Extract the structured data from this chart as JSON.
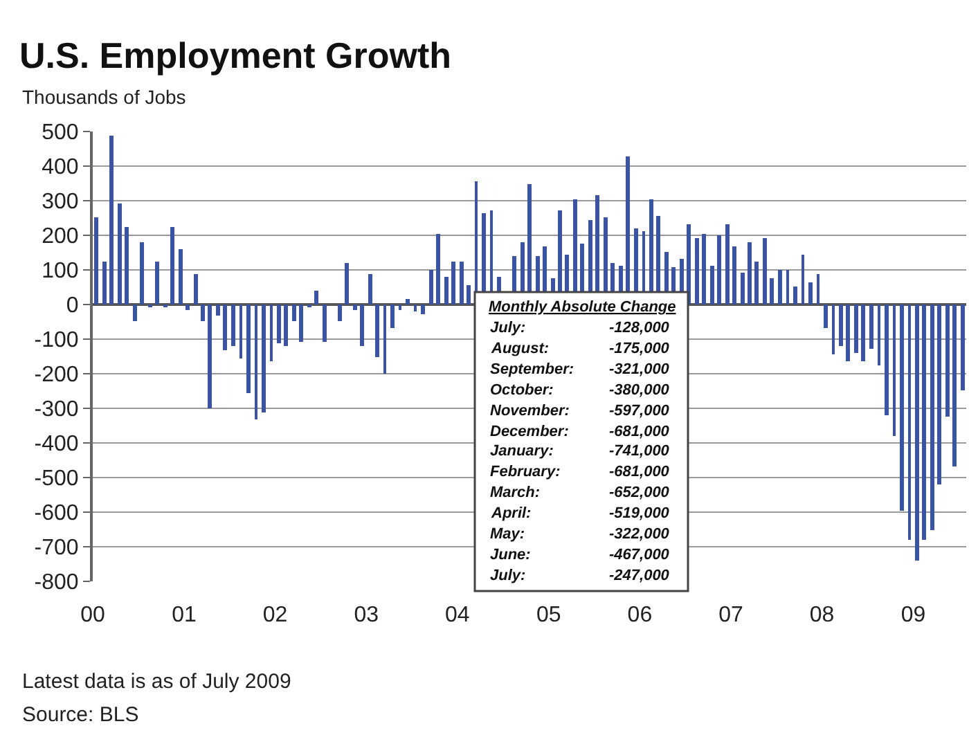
{
  "chart_data": {
    "type": "bar",
    "title": "U.S. Employment Growth",
    "ylabel": "Thousands of Jobs",
    "x": [
      "2000-01",
      "2000-02",
      "2000-03",
      "2000-04",
      "2000-05",
      "2000-06",
      "2000-07",
      "2000-08",
      "2000-09",
      "2000-10",
      "2000-11",
      "2000-12",
      "2001-01",
      "2001-02",
      "2001-03",
      "2001-04",
      "2001-05",
      "2001-06",
      "2001-07",
      "2001-08",
      "2001-09",
      "2001-10",
      "2001-11",
      "2001-12",
      "2002-01",
      "2002-02",
      "2002-03",
      "2002-04",
      "2002-05",
      "2002-06",
      "2002-07",
      "2002-08",
      "2002-09",
      "2002-10",
      "2002-11",
      "2002-12",
      "2003-01",
      "2003-02",
      "2003-03",
      "2003-04",
      "2003-05",
      "2003-06",
      "2003-07",
      "2003-08",
      "2003-09",
      "2003-10",
      "2003-11",
      "2003-12",
      "2004-01",
      "2004-02",
      "2004-03",
      "2004-04",
      "2004-05",
      "2004-06",
      "2004-07",
      "2004-08",
      "2004-09",
      "2004-10",
      "2004-11",
      "2004-12",
      "2005-01",
      "2005-02",
      "2005-03",
      "2005-04",
      "2005-05",
      "2005-06",
      "2005-07",
      "2005-08",
      "2005-09",
      "2005-10",
      "2005-11",
      "2005-12",
      "2006-01",
      "2006-02",
      "2006-03",
      "2006-04",
      "2006-05",
      "2006-06",
      "2006-07",
      "2006-08",
      "2006-09",
      "2006-10",
      "2006-11",
      "2006-12",
      "2007-01",
      "2007-02",
      "2007-03",
      "2007-04",
      "2007-05",
      "2007-06",
      "2007-07",
      "2007-08",
      "2007-09",
      "2007-10",
      "2007-11",
      "2007-12",
      "2008-01",
      "2008-02",
      "2008-03",
      "2008-04",
      "2008-05",
      "2008-06",
      "2008-07",
      "2008-08",
      "2008-09",
      "2008-10",
      "2008-11",
      "2008-12",
      "2009-01",
      "2009-02",
      "2009-03",
      "2009-04",
      "2009-05",
      "2009-06",
      "2009-07"
    ],
    "series": [
      {
        "color": "#3a53a4",
        "values": [
          251,
          123,
          487,
          291,
          223,
          -48,
          179,
          -8,
          123,
          -8,
          223,
          159,
          -16,
          87,
          -48,
          -300,
          -32,
          -132,
          -120,
          -156,
          -256,
          -332,
          -312,
          -164,
          -112,
          -120,
          -48,
          -108,
          -5,
          39,
          -108,
          0,
          -48,
          119,
          -16,
          -120,
          87,
          -152,
          -200,
          -68,
          -16,
          15,
          -20,
          -28,
          99,
          203,
          79,
          123,
          123,
          55,
          355,
          263,
          271,
          79,
          null,
          139,
          179,
          347,
          139,
          167,
          77,
          271,
          143,
          303,
          177,
          243,
          315,
          251,
          119,
          111,
          427,
          219,
          211,
          303,
          255,
          151,
          107,
          131,
          231,
          191,
          203,
          111,
          199,
          231,
          167,
          93,
          180,
          123,
          191,
          75,
          99,
          99,
          51,
          143,
          63,
          87,
          -69,
          -145,
          -120,
          -164,
          -140,
          -164,
          -128,
          -175,
          -321,
          -380,
          -597,
          -681,
          -741,
          -681,
          -652,
          -519,
          -322,
          -467,
          -247
        ]
      }
    ],
    "xlim": [
      "2000-01",
      "2009-08"
    ],
    "xticks": [
      {
        "value": "2000-01",
        "label": "00"
      },
      {
        "value": "2001-01",
        "label": "01"
      },
      {
        "value": "2002-01",
        "label": "02"
      },
      {
        "value": "2003-01",
        "label": "03"
      },
      {
        "value": "2004-01",
        "label": "04"
      },
      {
        "value": "2005-01",
        "label": "05"
      },
      {
        "value": "2006-01",
        "label": "06"
      },
      {
        "value": "2007-01",
        "label": "07"
      },
      {
        "value": "2008-01",
        "label": "08"
      },
      {
        "value": "2009-01",
        "label": "09"
      }
    ],
    "ylim": [
      -800,
      500
    ],
    "yticks": [
      -800,
      -700,
      -600,
      -500,
      -400,
      -300,
      -200,
      -100,
      0,
      100,
      200,
      300,
      400,
      500
    ],
    "grid": "y",
    "annotations": [
      "Monthly Absolute Change",
      "July:\t-128,000",
      "August:\t-175,000",
      "September:\t-321,000",
      "October:\t-380,000",
      "November:\t-597,000",
      "December:\t-681,000",
      "January:\t-741,000",
      "February:\t-681,000",
      "March:\t-652,000",
      "April:\t-519,000",
      "May:\t-322,000",
      "June:\t-467,000",
      "July:\t-247,000",
      "Latest data is as of July 2009",
      "Source: BLS"
    ]
  }
}
